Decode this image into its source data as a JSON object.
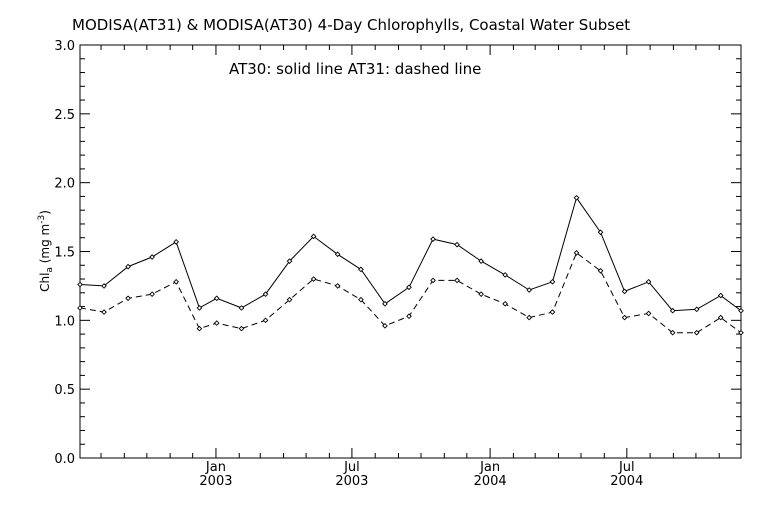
{
  "chart_data": {
    "type": "line",
    "title": "MODISA(AT31) & MODISA(AT30) 4-Day Chlorophylls, Coastal Water Subset",
    "annotation": "AT30: solid line   AT31: dashed line",
    "ylabel": {
      "base": "Chl",
      "sub": "a",
      "units_pre": " (mg m",
      "units_sup": "-3",
      "units_post": ")"
    },
    "ylim": [
      0.0,
      3.0
    ],
    "yticks": [
      "0.0",
      "0.5",
      "1.0",
      "1.5",
      "2.0",
      "2.5",
      "3.0"
    ],
    "x_range": [
      "2002-07-04",
      "2004-11-30"
    ],
    "xticks": [
      {
        "date": "2003-01-01",
        "month": "Jan",
        "year": "2003"
      },
      {
        "date": "2003-07-01",
        "month": "Jul",
        "year": "2003"
      },
      {
        "date": "2004-01-01",
        "month": "Jan",
        "year": "2004"
      },
      {
        "date": "2004-07-01",
        "month": "Jul",
        "year": "2004"
      }
    ],
    "x": [
      "2002-07-04",
      "2002-08-05",
      "2002-09-06",
      "2002-10-08",
      "2002-11-09",
      "2002-12-10",
      "2003-01-02",
      "2003-02-04",
      "2003-03-08",
      "2003-04-09",
      "2003-05-11",
      "2003-06-12",
      "2003-07-13",
      "2003-08-14",
      "2003-09-15",
      "2003-10-17",
      "2003-11-18",
      "2003-12-20",
      "2004-01-21",
      "2004-02-22",
      "2004-03-24",
      "2004-04-25",
      "2004-05-27",
      "2004-06-28",
      "2004-07-30",
      "2004-08-31",
      "2004-10-02",
      "2004-11-03",
      "2004-11-30"
    ],
    "series": [
      {
        "style": "solid",
        "values": [
          1.26,
          1.25,
          1.39,
          1.46,
          1.57,
          1.09,
          1.16,
          1.09,
          1.19,
          1.43,
          1.61,
          1.48,
          1.37,
          1.12,
          1.24,
          1.59,
          1.55,
          1.43,
          1.33,
          1.22,
          1.28,
          1.89,
          1.64,
          1.21,
          1.28,
          1.07,
          1.08,
          1.18,
          1.07
        ]
      },
      {
        "style": "dashed",
        "values": [
          1.09,
          1.06,
          1.16,
          1.19,
          1.28,
          0.94,
          0.98,
          0.94,
          1.0,
          1.15,
          1.3,
          1.25,
          1.15,
          0.96,
          1.03,
          1.29,
          1.29,
          1.19,
          1.12,
          1.02,
          1.06,
          1.49,
          1.36,
          1.02,
          1.05,
          0.91,
          0.91,
          1.02,
          0.91
        ]
      }
    ]
  }
}
